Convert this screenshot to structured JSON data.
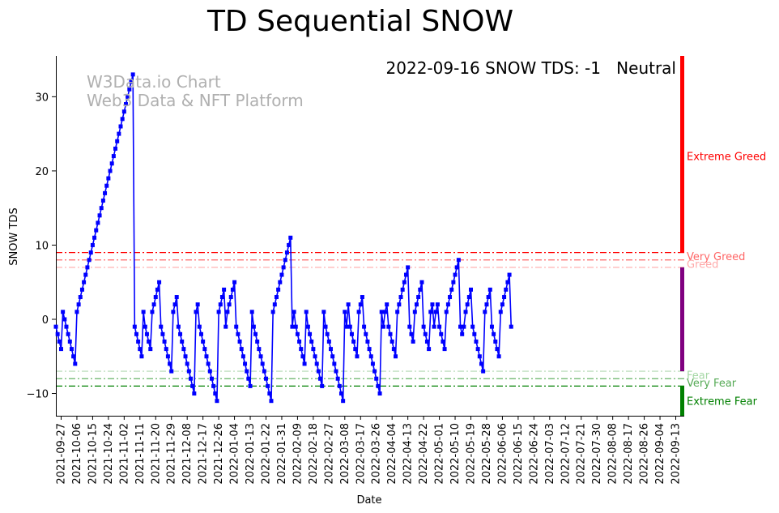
{
  "chart_data": {
    "type": "line",
    "title": "TD Sequential SNOW",
    "xlabel": "Date",
    "ylabel": "SNOW TDS",
    "ylim": [
      -13,
      35.5
    ],
    "xlim": [
      "2021-09-24",
      "2022-09-16"
    ],
    "yticks": [
      -10,
      0,
      10,
      20,
      30
    ],
    "xticks": [
      "2021-09-27",
      "2021-10-06",
      "2021-10-15",
      "2021-10-24",
      "2021-11-02",
      "2021-11-11",
      "2021-11-20",
      "2021-11-29",
      "2021-12-08",
      "2021-12-17",
      "2021-12-26",
      "2022-01-04",
      "2022-01-13",
      "2022-01-22",
      "2022-01-31",
      "2022-02-09",
      "2022-02-18",
      "2022-02-27",
      "2022-03-08",
      "2022-03-17",
      "2022-03-26",
      "2022-04-04",
      "2022-04-13",
      "2022-04-22",
      "2022-05-01",
      "2022-05-10",
      "2022-05-19",
      "2022-05-28",
      "2022-06-06",
      "2022-06-15",
      "2022-06-24",
      "2022-07-03",
      "2022-07-12",
      "2022-07-21",
      "2022-07-30",
      "2022-08-08",
      "2022-08-17",
      "2022-08-26",
      "2022-09-04",
      "2022-09-13"
    ],
    "series": [
      {
        "name": "SNOW TDS",
        "color": "#0000ff",
        "start_date": "2021-09-24",
        "values": [
          -1,
          -2,
          -3,
          -4,
          1,
          0,
          -1,
          -2,
          -3,
          -4,
          -5,
          -6,
          1,
          2,
          3,
          4,
          5,
          6,
          7,
          8,
          9,
          10,
          11,
          12,
          13,
          14,
          15,
          16,
          17,
          18,
          19,
          20,
          21,
          22,
          23,
          24,
          25,
          26,
          27,
          28,
          29,
          30,
          31,
          32,
          33,
          -1,
          -2,
          -3,
          -4,
          -5,
          1,
          -1,
          -2,
          -3,
          -4,
          1,
          2,
          3,
          4,
          5,
          -1,
          -2,
          -3,
          -4,
          -5,
          -6,
          -7,
          1,
          2,
          3,
          -1,
          -2,
          -3,
          -4,
          -5,
          -6,
          -7,
          -8,
          -9,
          -10,
          1,
          2,
          -1,
          -2,
          -3,
          -4,
          -5,
          -6,
          -7,
          -8,
          -9,
          -10,
          -11,
          1,
          2,
          3,
          4,
          -1,
          1,
          2,
          3,
          4,
          5,
          -1,
          -2,
          -3,
          -4,
          -5,
          -6,
          -7,
          -8,
          -9,
          1,
          -1,
          -2,
          -3,
          -4,
          -5,
          -6,
          -7,
          -8,
          -9,
          -10,
          -11,
          1,
          2,
          3,
          4,
          5,
          6,
          7,
          8,
          9,
          10,
          11,
          -1,
          1,
          -1,
          -2,
          -3,
          -4,
          -5,
          -6,
          1,
          -1,
          -2,
          -3,
          -4,
          -5,
          -6,
          -7,
          -8,
          -9,
          1,
          -1,
          -2,
          -3,
          -4,
          -5,
          -6,
          -7,
          -8,
          -9,
          -10,
          -11,
          1,
          -1,
          2,
          -1,
          -2,
          -3,
          -4,
          -5,
          1,
          2,
          3,
          -1,
          -2,
          -3,
          -4,
          -5,
          -6,
          -7,
          -8,
          -9,
          -10,
          1,
          -1,
          1,
          2,
          -1,
          -2,
          -3,
          -4,
          -5,
          1,
          2,
          3,
          4,
          5,
          6,
          7,
          -1,
          -2,
          -3,
          1,
          2,
          3,
          4,
          5,
          -1,
          -2,
          -3,
          -4,
          1,
          2,
          -1,
          1,
          2,
          -1,
          -2,
          -3,
          -4,
          1,
          2,
          3,
          4,
          5,
          6,
          7,
          8,
          -1,
          -2,
          -1,
          1,
          2,
          3,
          4,
          -1,
          -2,
          -3,
          -4,
          -5,
          -6,
          -7,
          1,
          2,
          3,
          4,
          -1,
          -2,
          -3,
          -4,
          -5,
          1,
          2,
          3,
          4,
          5,
          6,
          -1
        ]
      }
    ],
    "reference_lines": [
      {
        "label": "Extreme Greed",
        "value": 9,
        "color": "#ff0000",
        "opacity": 1.0,
        "style": "dashdot"
      },
      {
        "label": "Very Greed",
        "value": 8,
        "color": "#ff0000",
        "opacity": 0.6,
        "style": "dashdot"
      },
      {
        "label": "Greed",
        "value": 7,
        "color": "#ff0000",
        "opacity": 0.3,
        "style": "dashdot"
      },
      {
        "label": "Fear",
        "value": -7,
        "color": "#008000",
        "opacity": 0.3,
        "style": "dashdot"
      },
      {
        "label": "Very Fear",
        "value": -8,
        "color": "#008000",
        "opacity": 0.6,
        "style": "dashdot"
      },
      {
        "label": "Extreme Fear",
        "value": -9,
        "color": "#008000",
        "opacity": 1.0,
        "style": "dashdot"
      }
    ],
    "side_bar": [
      {
        "name": "Extreme Greed",
        "from": 9,
        "to": 35.5,
        "color": "#ff0000"
      },
      {
        "name": "Neutral",
        "from": -7,
        "to": 7,
        "color": "#800080"
      },
      {
        "name": "Extreme Fear",
        "from": -13,
        "to": -9,
        "color": "#008000"
      }
    ],
    "side_labels": [
      {
        "text": "Extreme Greed",
        "value": 22,
        "color": "#ff0000"
      },
      {
        "text": "Very Greed",
        "value": 8.5,
        "color": "#ff6666"
      },
      {
        "text": "Greed",
        "value": 7.5,
        "color": "#ffaaaa"
      },
      {
        "text": "Fear",
        "value": -7.5,
        "color": "#a6d8a6"
      },
      {
        "text": "Very Fear",
        "value": -8.5,
        "color": "#55aa55"
      },
      {
        "text": "Extreme Fear",
        "value": -11,
        "color": "#008000"
      }
    ],
    "status_text": "2022-09-16 SNOW TDS: -1",
    "status_label": "Neutral",
    "status_color": "#800080",
    "watermark": [
      "W3Data.io Chart",
      "Web3 Data & NFT Platform"
    ]
  }
}
